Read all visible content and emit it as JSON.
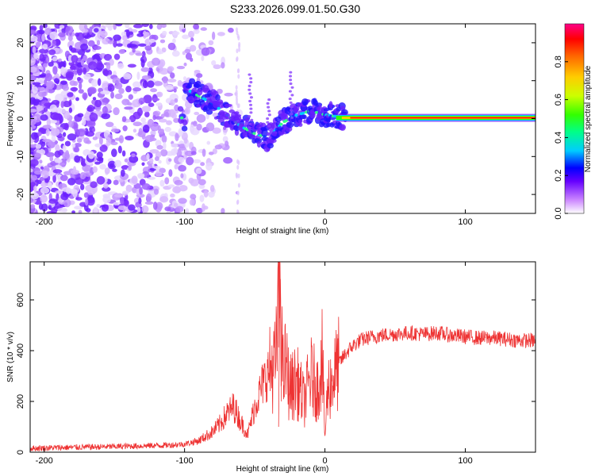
{
  "title": "S233.2026.099.01.50.G30",
  "chart_data": [
    {
      "type": "heatmap",
      "name": "spectrogram",
      "xlabel": "Height of straight line (km)",
      "ylabel": "Frequency (Hz)",
      "xlim": [
        -210,
        150
      ],
      "ylim": [
        -25,
        25
      ],
      "x_ticks": [
        -200,
        -100,
        0,
        100
      ],
      "x_tick_labels": [
        "-200",
        "-100",
        "0",
        "100"
      ],
      "y_ticks": [
        -20,
        -10,
        0,
        10,
        20
      ],
      "y_tick_labels": [
        "-20",
        "-10",
        "0",
        "10",
        "20"
      ],
      "ridge": {
        "description_points_x": [
          -100,
          -90,
          -80,
          -70,
          -60,
          -50,
          -40,
          -30,
          -20,
          -10,
          0,
          10,
          20,
          50,
          100,
          150
        ],
        "description_points_y": [
          8,
          6,
          4,
          1,
          -2,
          -4,
          -5,
          -1,
          1,
          2,
          1,
          0.5,
          0.2,
          0.2,
          0.2,
          0.2
        ]
      },
      "colorbar": {
        "label": "Normalized spectral amplitude",
        "range": [
          0.0,
          1.0
        ],
        "ticks": [
          0.0,
          0.2,
          0.4,
          0.6,
          0.8
        ],
        "tick_labels": [
          "0.0",
          "0.2",
          "0.4",
          "0.6",
          "0.8"
        ]
      }
    },
    {
      "type": "line",
      "name": "snr",
      "xlabel": "Height of straight line (km)",
      "ylabel": "SNR (10 * v/v)",
      "xlim": [
        -210,
        150
      ],
      "ylim": [
        0,
        750
      ],
      "x_ticks": [
        -200,
        -100,
        0,
        100
      ],
      "x_tick_labels": [
        "-200",
        "-100",
        "0",
        "100"
      ],
      "y_ticks": [
        0,
        200,
        400,
        600
      ],
      "y_tick_labels": [
        "0",
        "200",
        "400",
        "600"
      ],
      "color": "#ee3333",
      "series": [
        {
          "name": "SNR",
          "x": [
            -210,
            -190,
            -170,
            -150,
            -130,
            -110,
            -100,
            -90,
            -80,
            -75,
            -70,
            -65,
            -60,
            -55,
            -50,
            -45,
            -40,
            -35,
            -32,
            -30,
            -28,
            -25,
            -20,
            -15,
            -10,
            -5,
            -2,
            0,
            2,
            5,
            10,
            15,
            20,
            25,
            30,
            40,
            50,
            60,
            70,
            80,
            90,
            100,
            110,
            120,
            130,
            140,
            150
          ],
          "values": [
            15,
            18,
            20,
            22,
            25,
            28,
            32,
            45,
            80,
            110,
            150,
            180,
            120,
            70,
            180,
            260,
            320,
            350,
            700,
            300,
            350,
            250,
            280,
            200,
            300,
            250,
            380,
            60,
            250,
            280,
            350,
            390,
            420,
            440,
            450,
            460,
            465,
            470,
            465,
            470,
            460,
            455,
            450,
            450,
            445,
            440,
            440
          ]
        }
      ]
    }
  ]
}
